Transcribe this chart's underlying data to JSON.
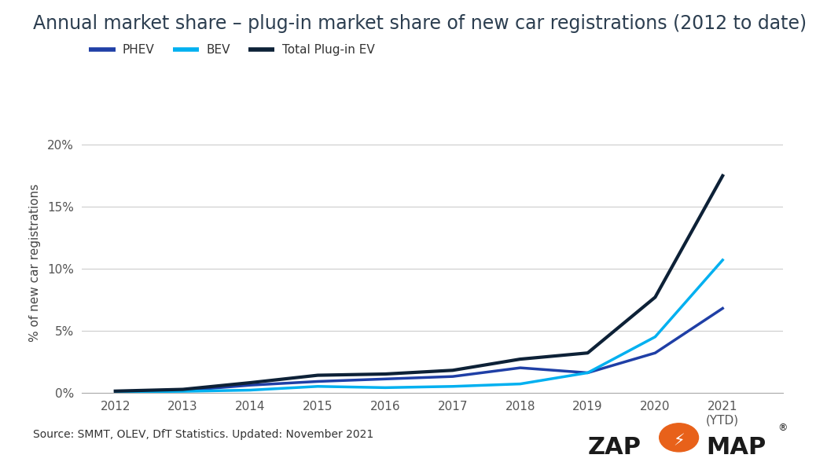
{
  "title": "Annual market share – plug-in market share of new car registrations (2012 to date)",
  "ylabel": "% of new car registrations",
  "source_text": "Source: SMMT, OLEV, DfT Statistics. Updated: November 2021",
  "years": [
    2012,
    2013,
    2014,
    2015,
    2016,
    2017,
    2018,
    2019,
    2020,
    2021
  ],
  "year_labels": [
    "2012",
    "2013",
    "2014",
    "2015",
    "2016",
    "2017",
    "2018",
    "2019",
    "2020",
    "2021\n(YTD)"
  ],
  "phev": [
    0.07,
    0.16,
    0.6,
    0.9,
    1.1,
    1.3,
    2.0,
    1.6,
    3.2,
    6.8
  ],
  "bev": [
    0.05,
    0.1,
    0.2,
    0.5,
    0.4,
    0.5,
    0.7,
    1.6,
    4.5,
    10.7
  ],
  "total": [
    0.12,
    0.26,
    0.8,
    1.4,
    1.5,
    1.8,
    2.7,
    3.2,
    7.7,
    17.5
  ],
  "phev_color": "#1f3fa6",
  "bev_color": "#00b0f0",
  "total_color": "#0d2137",
  "ylim": [
    0,
    21
  ],
  "yticks": [
    0,
    5,
    10,
    15,
    20
  ],
  "ytick_labels": [
    "0%",
    "5%",
    "10%",
    "15%",
    "20%"
  ],
  "background_color": "#ffffff",
  "title_fontsize": 17,
  "label_fontsize": 11,
  "tick_fontsize": 11,
  "line_width": 2.5,
  "legend_labels": [
    "PHEV",
    "BEV",
    "Total Plug-in EV"
  ]
}
